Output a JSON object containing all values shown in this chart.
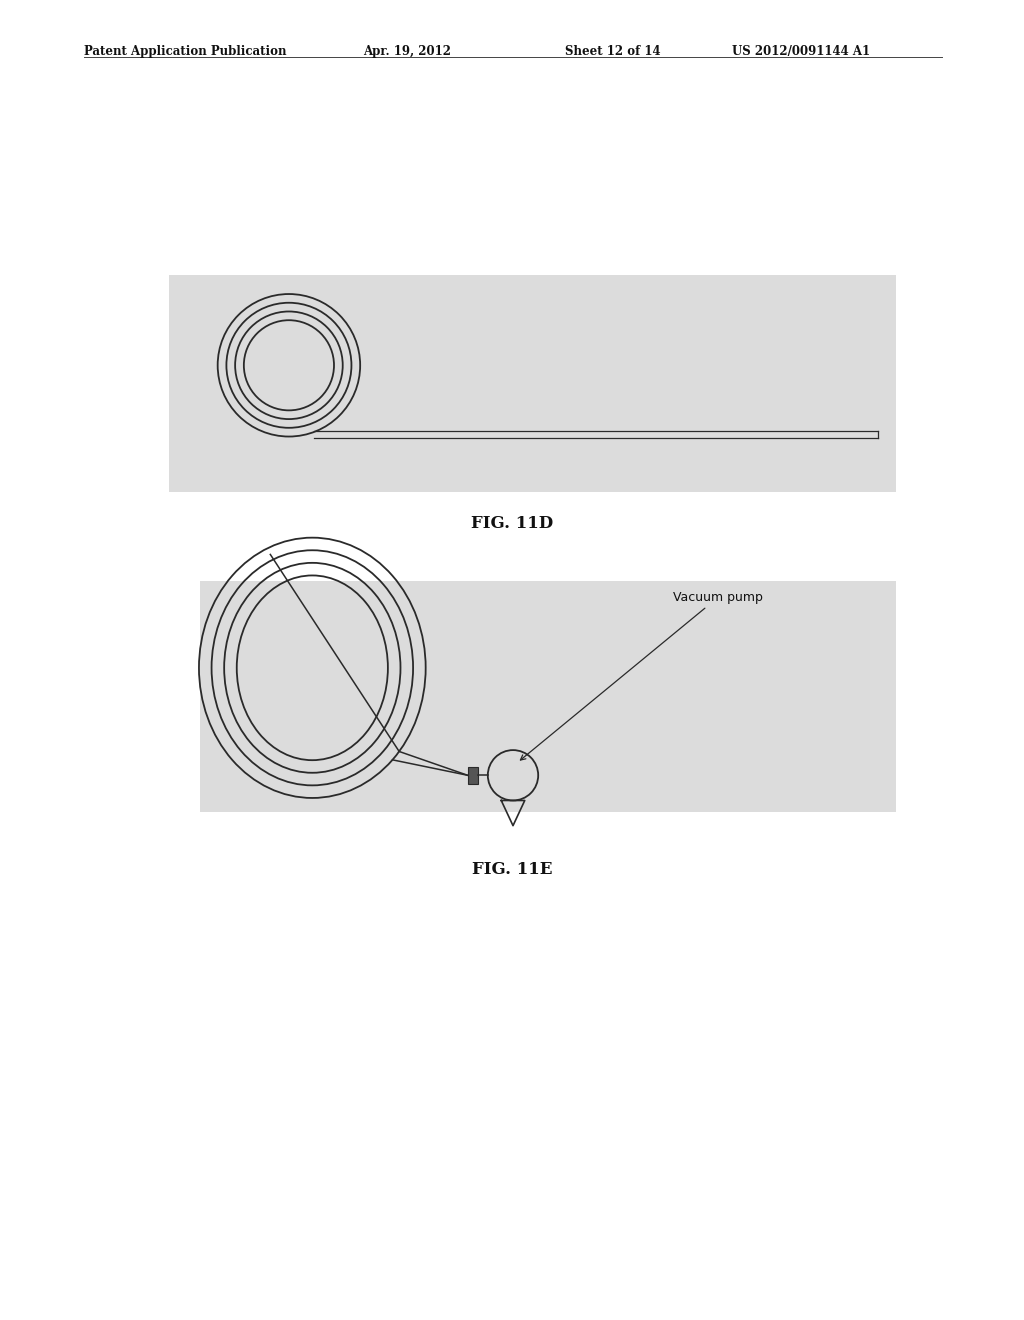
{
  "bg_color": "#ffffff",
  "panel_bg_11d": "#dcdcdc",
  "panel_bg_11e": "#dcdcdc",
  "header_text": "Patent Application Publication",
  "header_date": "Apr. 19, 2012",
  "header_sheet": "Sheet 12 of 14",
  "header_patent": "US 2012/0091144 A1",
  "fig11d_label": "FIG. 11D",
  "fig11e_label": "FIG. 11E",
  "fig11e_annotation": "Vacuum pump",
  "line_color": "#2a2a2a",
  "note": "FIG 11D: coil (4 circles) left side, long tube right. FIG 11E: large oval coil, diagonal through, tube to pump"
}
